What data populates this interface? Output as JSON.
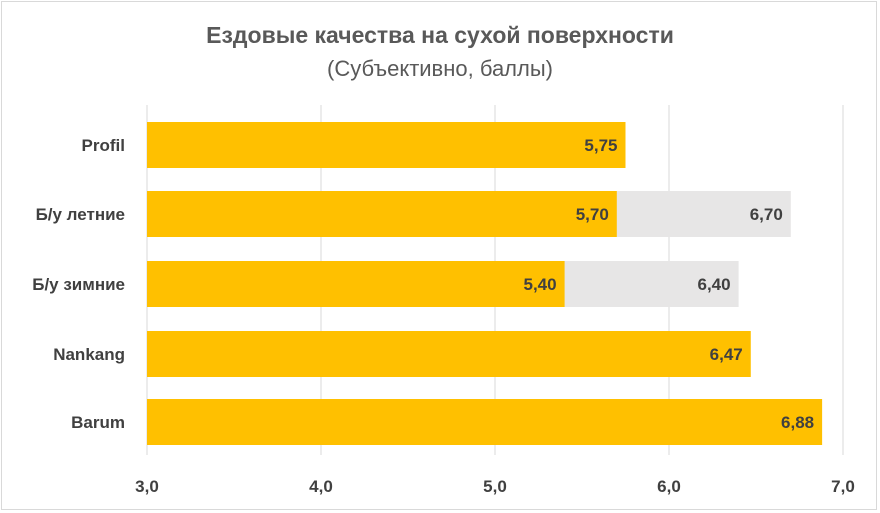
{
  "chart_data": {
    "type": "bar",
    "orientation": "horizontal",
    "title": "Ездовые качества на сухой поверхности",
    "subtitle": "(Субъективно, баллы)",
    "categories": [
      "Profil",
      "Б/у летние",
      "Б/у зимние",
      "Nankang",
      "Barum"
    ],
    "series": [
      {
        "values": [
          5.75,
          5.7,
          5.4,
          6.47,
          6.88
        ],
        "labels": [
          "5,75",
          "5,70",
          "5,40",
          "6,47",
          "6,88"
        ],
        "color": "#ffc000"
      },
      {
        "values": [
          null,
          6.7,
          6.4,
          null,
          null
        ],
        "labels": [
          null,
          "6,70",
          "6,40",
          null,
          null
        ],
        "color": "#e7e6e6"
      }
    ],
    "xlim": [
      3.0,
      7.0
    ],
    "ticks": [
      3.0,
      4.0,
      5.0,
      6.0,
      7.0
    ],
    "tick_labels": [
      "3,0",
      "4,0",
      "5,0",
      "6,0",
      "7,0"
    ],
    "grid": "vertical",
    "legend": "none"
  }
}
